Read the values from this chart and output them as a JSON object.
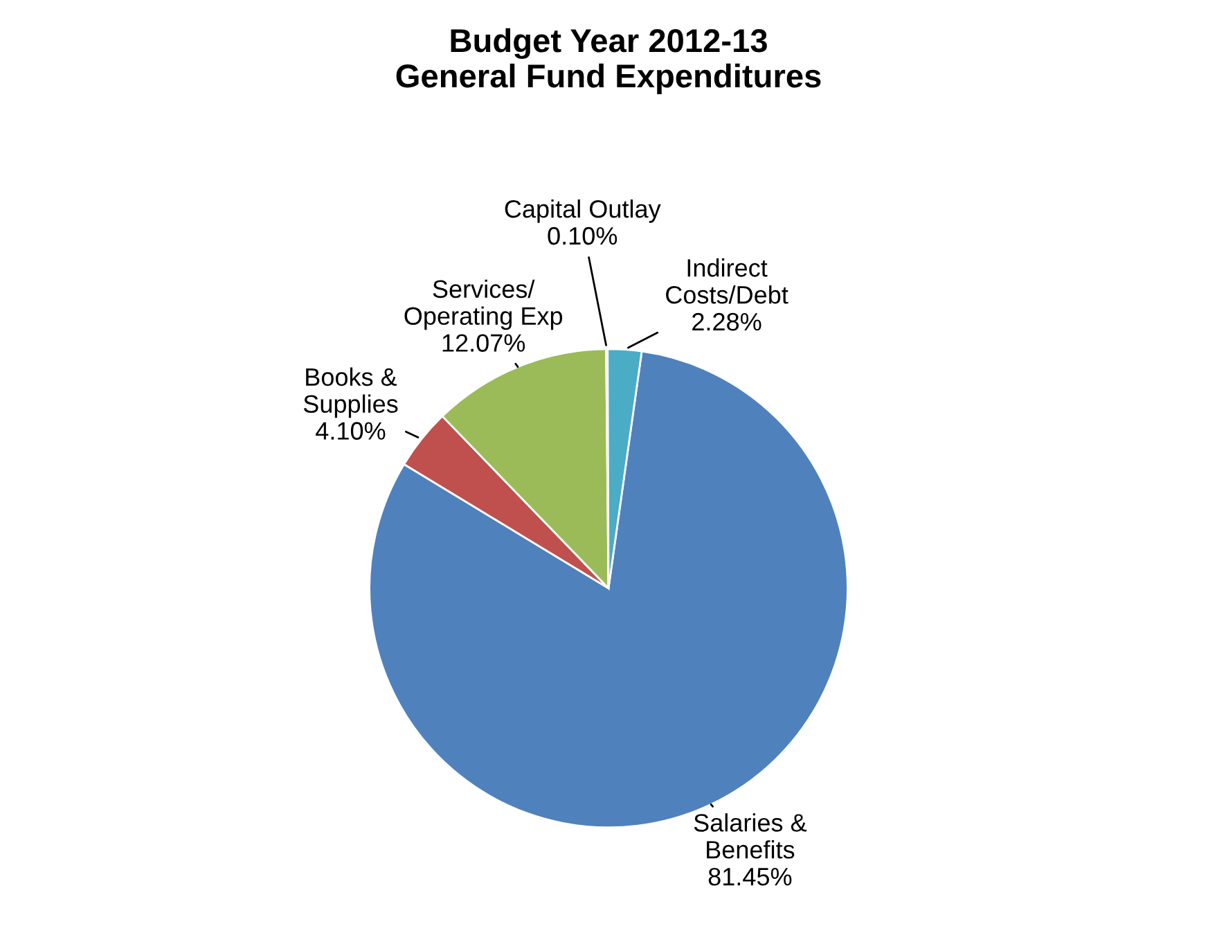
{
  "chart_data": {
    "type": "pie",
    "title": "Budget Year 2012-13\nGeneral Fund Expenditures",
    "categories": [
      "Salaries &\nBenefits",
      "Books &\nSupplies",
      "Services/\nOperating Exp",
      "Capital Outlay",
      "Indirect\nCosts/Debt"
    ],
    "values": [
      81.45,
      4.1,
      12.07,
      0.1,
      2.28
    ],
    "colors": [
      "#4f81bd",
      "#c0504d",
      "#9bbb59",
      "#8064a2",
      "#4bacc6"
    ],
    "value_labels": [
      "81.45%",
      "4.10%",
      "12.07%",
      "0.10%",
      "2.28%"
    ],
    "legend": false
  }
}
